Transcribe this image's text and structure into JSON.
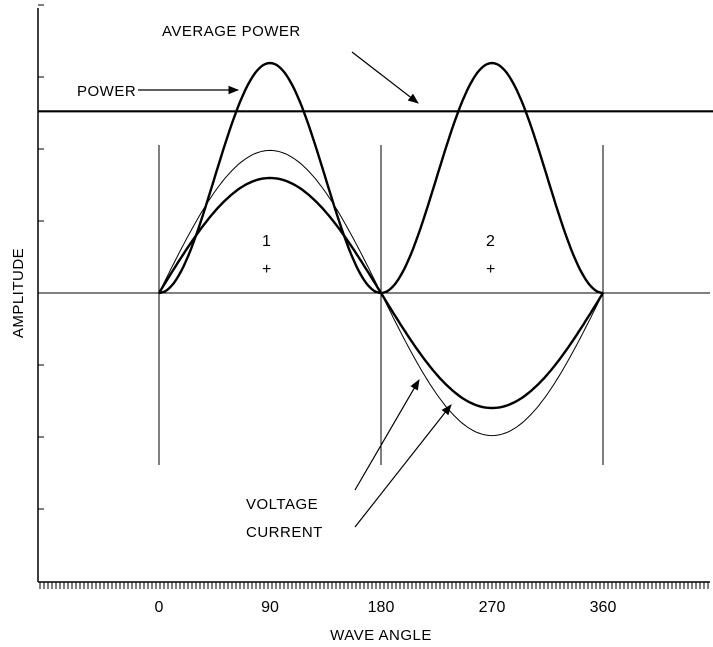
{
  "chart_data": {
    "type": "line",
    "xlabel": "WAVE ANGLE",
    "ylabel": "AMPLITUDE",
    "x_ticks": [
      "0",
      "90",
      "180",
      "270",
      "360"
    ],
    "x_tick_values": [
      0,
      90,
      180,
      270,
      360
    ],
    "series": [
      {
        "name": "POWER",
        "function": "sin^2",
        "peak": 1.0
      },
      {
        "name": "VOLTAGE",
        "function": "sin",
        "peak": 0.62
      },
      {
        "name": "CURRENT",
        "function": "sin",
        "peak": 0.5
      }
    ],
    "average_power_level": 0.79,
    "regions": [
      {
        "label": "1",
        "sign": "+",
        "center": 90
      },
      {
        "label": "2",
        "sign": "+",
        "center": 270
      }
    ]
  },
  "annotations": {
    "average_power": "AVERAGE POWER",
    "power": "POWER",
    "voltage": "VOLTAGE",
    "current": "CURRENT"
  },
  "colors": {
    "ink": "#000000",
    "background": "#ffffff"
  }
}
